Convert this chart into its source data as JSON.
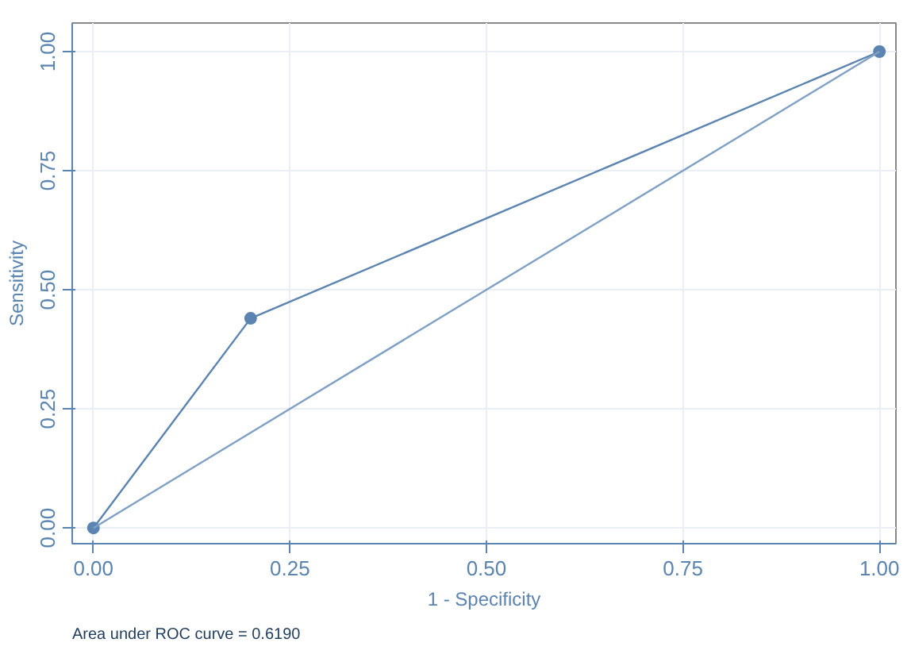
{
  "chart_data": {
    "type": "line",
    "xlabel": "1 - Specificity",
    "ylabel": "Sensitivity",
    "series": [
      {
        "color": "#5b84b1",
        "x": [
          0,
          0.2,
          1
        ],
        "values": [
          0,
          0.44,
          1
        ],
        "marker": "circle"
      },
      {
        "color": "#7fa0c4",
        "x": [
          0,
          1
        ],
        "values": [
          0,
          1
        ],
        "marker": "none"
      }
    ],
    "xlim": [
      -0.027,
      1.021
    ],
    "ylim": [
      -0.033,
      1.06
    ],
    "xticks": [
      {
        "value": 0,
        "label": "0.00"
      },
      {
        "value": 0.25,
        "label": "0.25"
      },
      {
        "value": 0.5,
        "label": "0.50"
      },
      {
        "value": 0.75,
        "label": "0.75"
      },
      {
        "value": 1,
        "label": "1.00"
      }
    ],
    "yticks": [
      {
        "value": 0,
        "label": "0.00"
      },
      {
        "value": 0.25,
        "label": "0.25"
      },
      {
        "value": 0.5,
        "label": "0.50"
      },
      {
        "value": 0.75,
        "label": "0.75"
      },
      {
        "value": 1,
        "label": "1.00"
      }
    ],
    "grid": true,
    "annotations": [
      "Area under ROC curve = 0.6190"
    ]
  }
}
